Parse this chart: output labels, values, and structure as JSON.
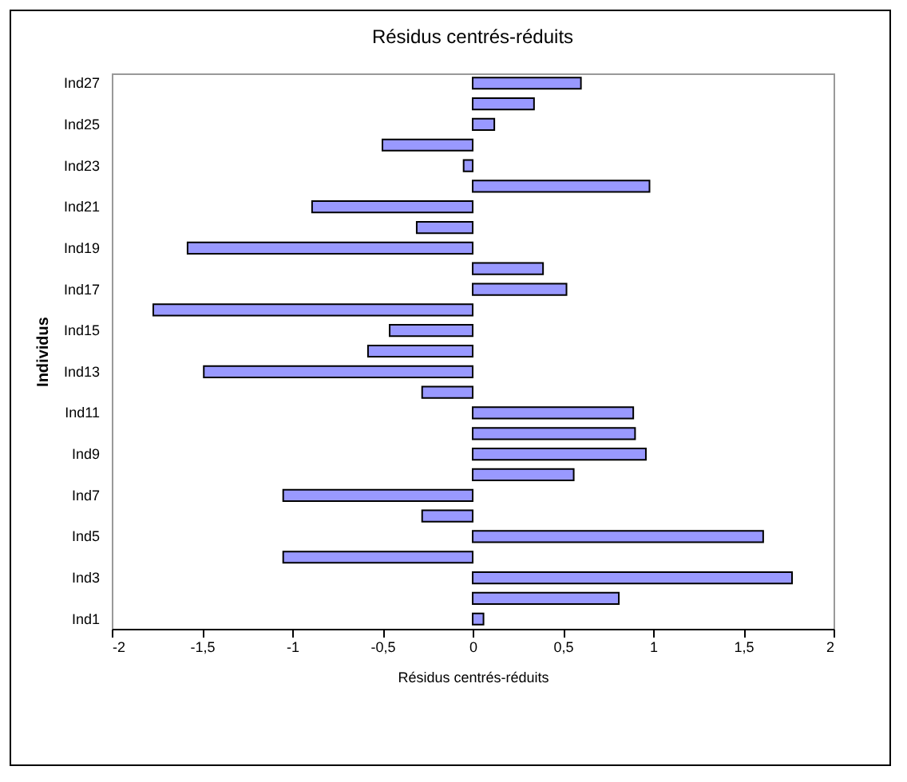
{
  "chart_data": {
    "type": "bar",
    "orientation": "horizontal",
    "title": "Résidus centrés-réduits",
    "xlabel": "Résidus centrés-réduits",
    "ylabel": "Individus",
    "categories": [
      "Ind27",
      null,
      "Ind25",
      null,
      "Ind23",
      null,
      "Ind21",
      null,
      "Ind19",
      null,
      "Ind17",
      null,
      "Ind15",
      null,
      "Ind13",
      null,
      "Ind11",
      null,
      "Ind9",
      null,
      "Ind7",
      null,
      "Ind5",
      null,
      "Ind3",
      null,
      "Ind1"
    ],
    "values": [
      0.6,
      0.34,
      0.12,
      -0.5,
      -0.05,
      0.98,
      -0.89,
      -0.31,
      -1.58,
      0.39,
      0.52,
      -1.77,
      -0.46,
      -0.58,
      -1.49,
      -0.28,
      0.89,
      0.9,
      0.96,
      0.56,
      -1.05,
      -0.28,
      1.61,
      -1.05,
      1.77,
      0.81,
      0.06
    ],
    "color": "#9999ff",
    "xlim": [
      -2,
      2
    ],
    "xticks": [
      -2,
      {
        "value": -1.5,
        "label": "-1,5"
      },
      -1,
      {
        "value": -0.5,
        "label": "-0,5"
      },
      0,
      {
        "value": 0.5,
        "label": "0,5"
      },
      1,
      {
        "value": 1.5,
        "label": "1,5"
      },
      2
    ],
    "grid": false
  }
}
